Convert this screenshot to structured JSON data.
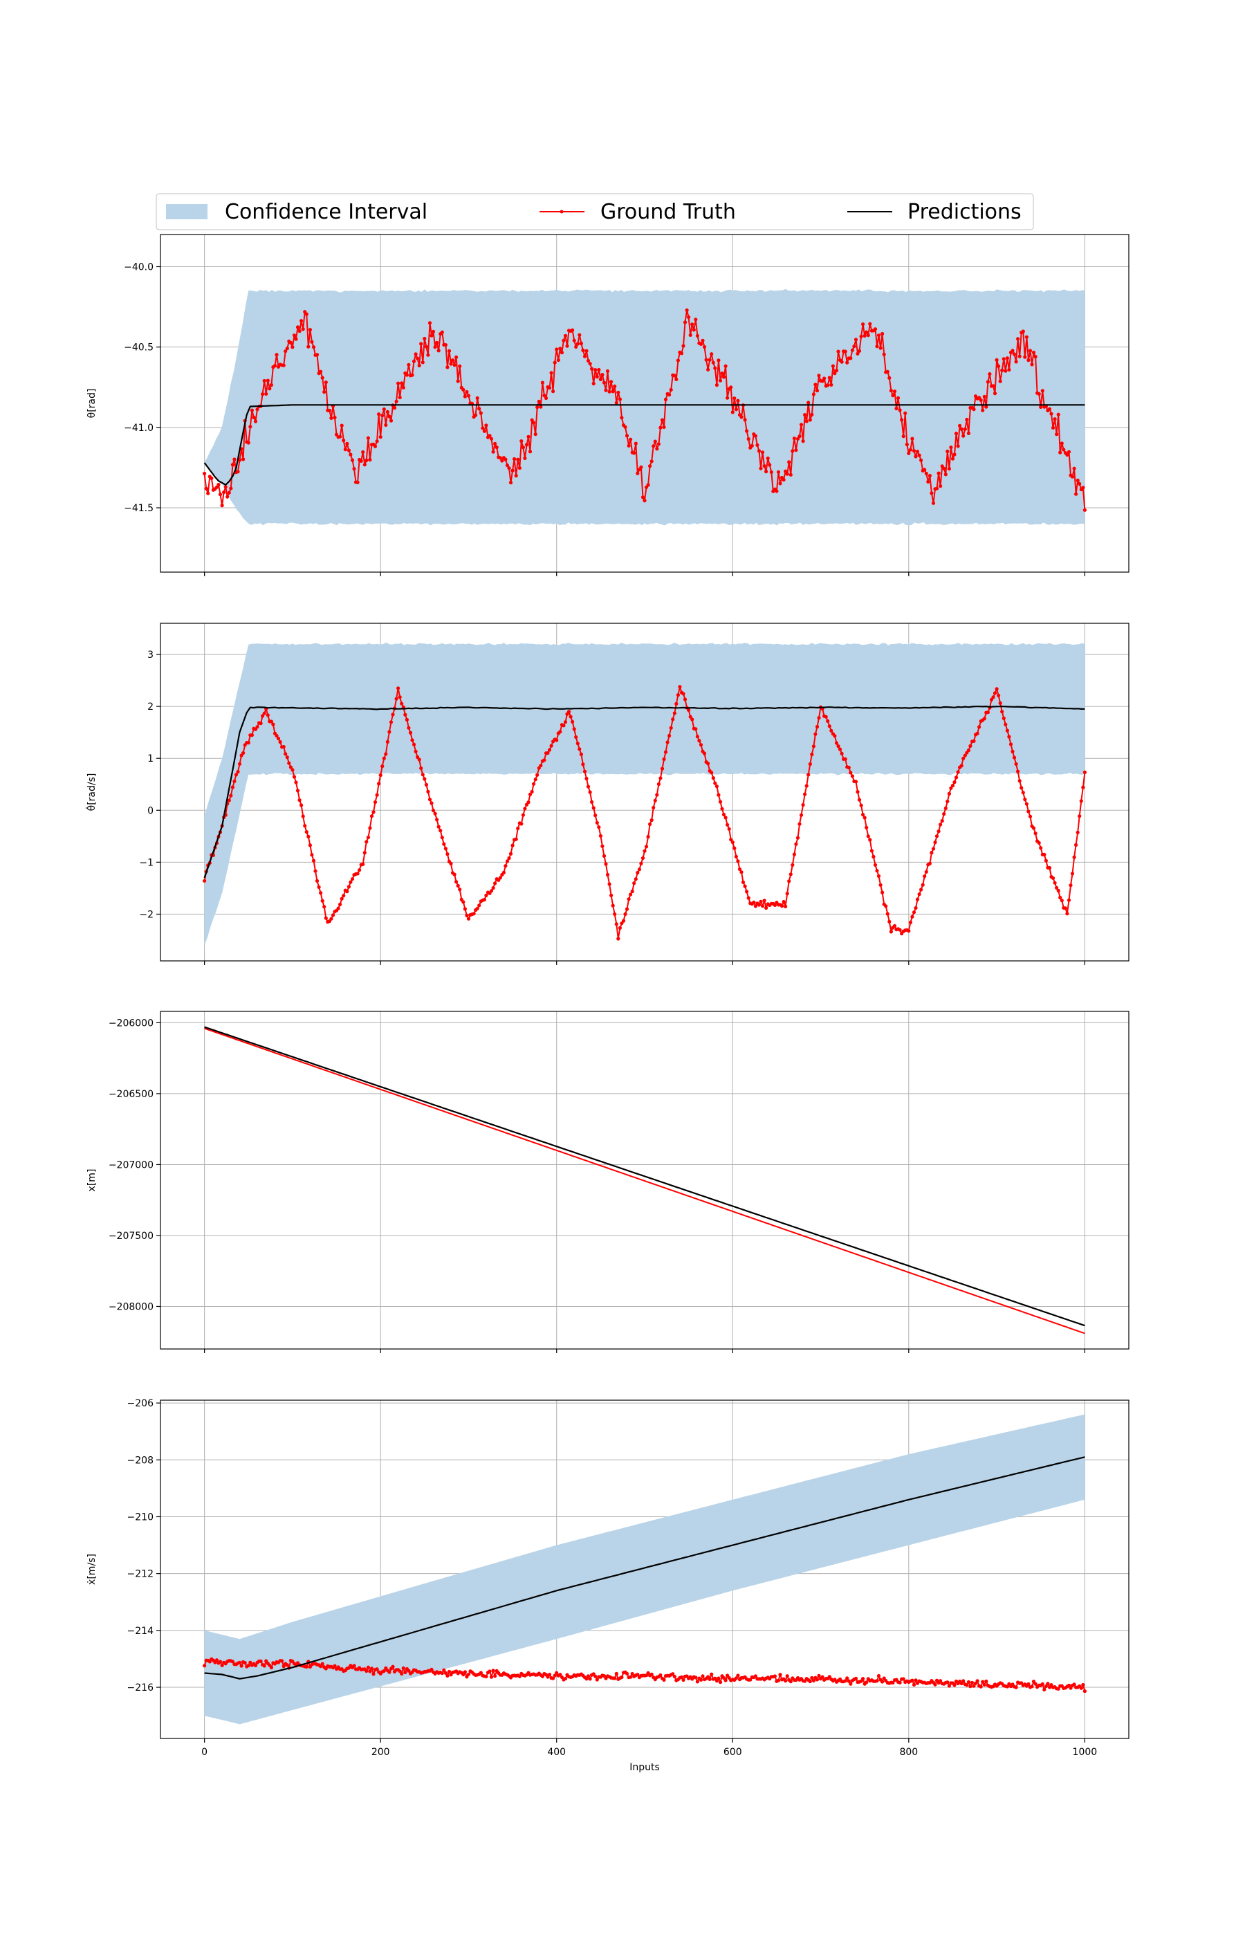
{
  "legend": {
    "placement": "top",
    "entries": [
      {
        "label": "Confidence Interval",
        "color": "#b9d4e8",
        "kind": "patch"
      },
      {
        "label": "Ground Truth",
        "color": "#ff0000",
        "kind": "line-marker"
      },
      {
        "label": "Predictions",
        "color": "#000000",
        "kind": "line"
      }
    ]
  },
  "colors": {
    "ci": "#b9d4e8",
    "truth": "#ff0000",
    "pred": "#000000",
    "grid": "#b0b0b0"
  },
  "chart_data": [
    {
      "type": "line",
      "xlabel": "",
      "ylabel": "θ[rad]",
      "xlim": [
        -50,
        1050
      ],
      "ylim": [
        -41.9,
        -39.8
      ],
      "yticks": [
        -40.0,
        -40.5,
        -41.0,
        -41.5
      ],
      "ytick_labels": [
        "−40.0",
        "−40.5",
        "−41.0",
        "−41.5"
      ],
      "xticks": [
        0,
        200,
        400,
        600,
        800,
        1000
      ],
      "xtick_labels": [],
      "grid": true,
      "ground_truth": {
        "x_points": [
          0,
          25,
          50,
          110,
          170,
          260,
          350,
          415,
          470,
          500,
          550,
          590,
          650,
          700,
          760,
          800,
          830,
          870,
          930,
          990,
          1000
        ],
        "y_points": [
          -41.3,
          -41.45,
          -41.0,
          -40.3,
          -41.3,
          -40.4,
          -41.3,
          -40.4,
          -40.8,
          -41.4,
          -40.35,
          -40.7,
          -41.4,
          -40.7,
          -40.35,
          -41.1,
          -41.4,
          -40.9,
          -40.45,
          -41.3,
          -41.5
        ],
        "noise": 0.16
      },
      "predictions": {
        "x_points": [
          0,
          15,
          25,
          35,
          45,
          50,
          100,
          400,
          700,
          1000
        ],
        "y_points": [
          -41.22,
          -41.33,
          -41.36,
          -41.28,
          -41.0,
          -40.87,
          -40.86,
          -40.86,
          -40.86,
          -40.86
        ]
      },
      "confidence_interval": {
        "x_points": [
          0,
          20,
          35,
          50,
          1000
        ],
        "upper": [
          -41.22,
          -41.0,
          -40.6,
          -40.15,
          -40.15
        ],
        "lower": [
          -41.22,
          -41.35,
          -41.5,
          -41.6,
          -41.6
        ],
        "noise": 0.012
      }
    },
    {
      "type": "line",
      "xlabel": "",
      "ylabel": "θ̇[rad/s]",
      "xlim": [
        -50,
        1050
      ],
      "ylim": [
        -2.9,
        3.6
      ],
      "yticks": [
        3,
        2,
        1,
        0,
        -1,
        -2
      ],
      "ytick_labels": [
        "3",
        "2",
        "1",
        "0",
        "−1",
        "−2"
      ],
      "xticks": [
        0,
        200,
        400,
        600,
        800,
        1000
      ],
      "xtick_labels": [],
      "grid": true,
      "ground_truth": {
        "x_points": [
          0,
          20,
          45,
          70,
          100,
          140,
          180,
          220,
          260,
          300,
          340,
          380,
          415,
          450,
          470,
          500,
          540,
          580,
          620,
          660,
          700,
          740,
          780,
          800,
          850,
          900,
          940,
          980,
          1000
        ],
        "y_points": [
          -1.3,
          -0.3,
          1.2,
          1.9,
          0.8,
          -2.2,
          -1.0,
          2.3,
          0.0,
          -2.1,
          -1.2,
          0.8,
          1.9,
          -0.5,
          -2.4,
          -0.8,
          2.4,
          0.5,
          -1.8,
          -1.8,
          2.0,
          0.5,
          -2.3,
          -2.3,
          0.5,
          2.3,
          -0.3,
          -2.0,
          0.7
        ],
        "noise": 0.09
      },
      "predictions": {
        "x_points": [
          0,
          20,
          40,
          50,
          100,
          200,
          300,
          400,
          500,
          600,
          700,
          800,
          900,
          1000
        ],
        "y_points": [
          -1.3,
          -0.3,
          1.5,
          1.98,
          1.97,
          1.95,
          1.98,
          1.95,
          1.98,
          1.96,
          1.98,
          1.97,
          2.0,
          1.95
        ],
        "noise": 0.012
      },
      "confidence_interval": {
        "x_points": [
          0,
          20,
          50,
          1000
        ],
        "upper": [
          -0.1,
          1.0,
          3.2,
          3.2
        ],
        "lower": [
          -2.6,
          -1.6,
          0.7,
          0.7
        ],
        "noise": 0.03
      }
    },
    {
      "type": "line",
      "xlabel": "",
      "ylabel": "x[m]",
      "xlim": [
        -50,
        1050
      ],
      "ylim": [
        -208300,
        -205920
      ],
      "yticks": [
        -206000,
        -206500,
        -207000,
        -207500,
        -208000
      ],
      "ytick_labels": [
        "−206000",
        "−206500",
        "−207000",
        "−207500",
        "−208000"
      ],
      "xticks": [
        0,
        200,
        400,
        600,
        800,
        1000
      ],
      "xtick_labels": [],
      "grid": true,
      "ground_truth": {
        "x_points": [
          0,
          1000
        ],
        "y_points": [
          -206040,
          -208190
        ],
        "noise": 0
      },
      "predictions": {
        "x_points": [
          0,
          1000
        ],
        "y_points": [
          -206030,
          -208135
        ]
      },
      "confidence_interval": null
    },
    {
      "type": "line",
      "xlabel": "Inputs",
      "ylabel": "ẋ[m/s]",
      "xlim": [
        -50,
        1050
      ],
      "ylim": [
        -217.8,
        -205.9
      ],
      "yticks": [
        -206,
        -208,
        -210,
        -212,
        -214,
        -216
      ],
      "ytick_labels": [
        "−206",
        "−208",
        "−210",
        "−212",
        "−214",
        "−216"
      ],
      "xticks": [
        0,
        200,
        400,
        600,
        800,
        1000
      ],
      "xtick_labels": [
        "0",
        "200",
        "400",
        "600",
        "800",
        "1000"
      ],
      "grid": true,
      "ground_truth": {
        "x_points": [
          0,
          100,
          200,
          300,
          400,
          500,
          600,
          700,
          800,
          900,
          1000
        ],
        "y_points": [
          -215.1,
          -215.2,
          -215.4,
          -215.5,
          -215.6,
          -215.6,
          -215.7,
          -215.7,
          -215.8,
          -215.9,
          -216.0
        ],
        "noise": 0.18
      },
      "predictions": {
        "x_points": [
          0,
          20,
          40,
          60,
          100,
          200,
          400,
          600,
          800,
          1000
        ],
        "y_points": [
          -215.5,
          -215.55,
          -215.7,
          -215.6,
          -215.3,
          -214.4,
          -212.6,
          -211.0,
          -209.4,
          -207.9
        ]
      },
      "confidence_interval": {
        "x_points": [
          0,
          40,
          100,
          400,
          600,
          800,
          1000
        ],
        "upper": [
          -214.0,
          -214.3,
          -213.7,
          -211.0,
          -209.4,
          -207.8,
          -206.4
        ],
        "lower": [
          -217.0,
          -217.3,
          -216.8,
          -214.3,
          -212.6,
          -211.0,
          -209.4
        ],
        "noise": 0
      }
    }
  ]
}
